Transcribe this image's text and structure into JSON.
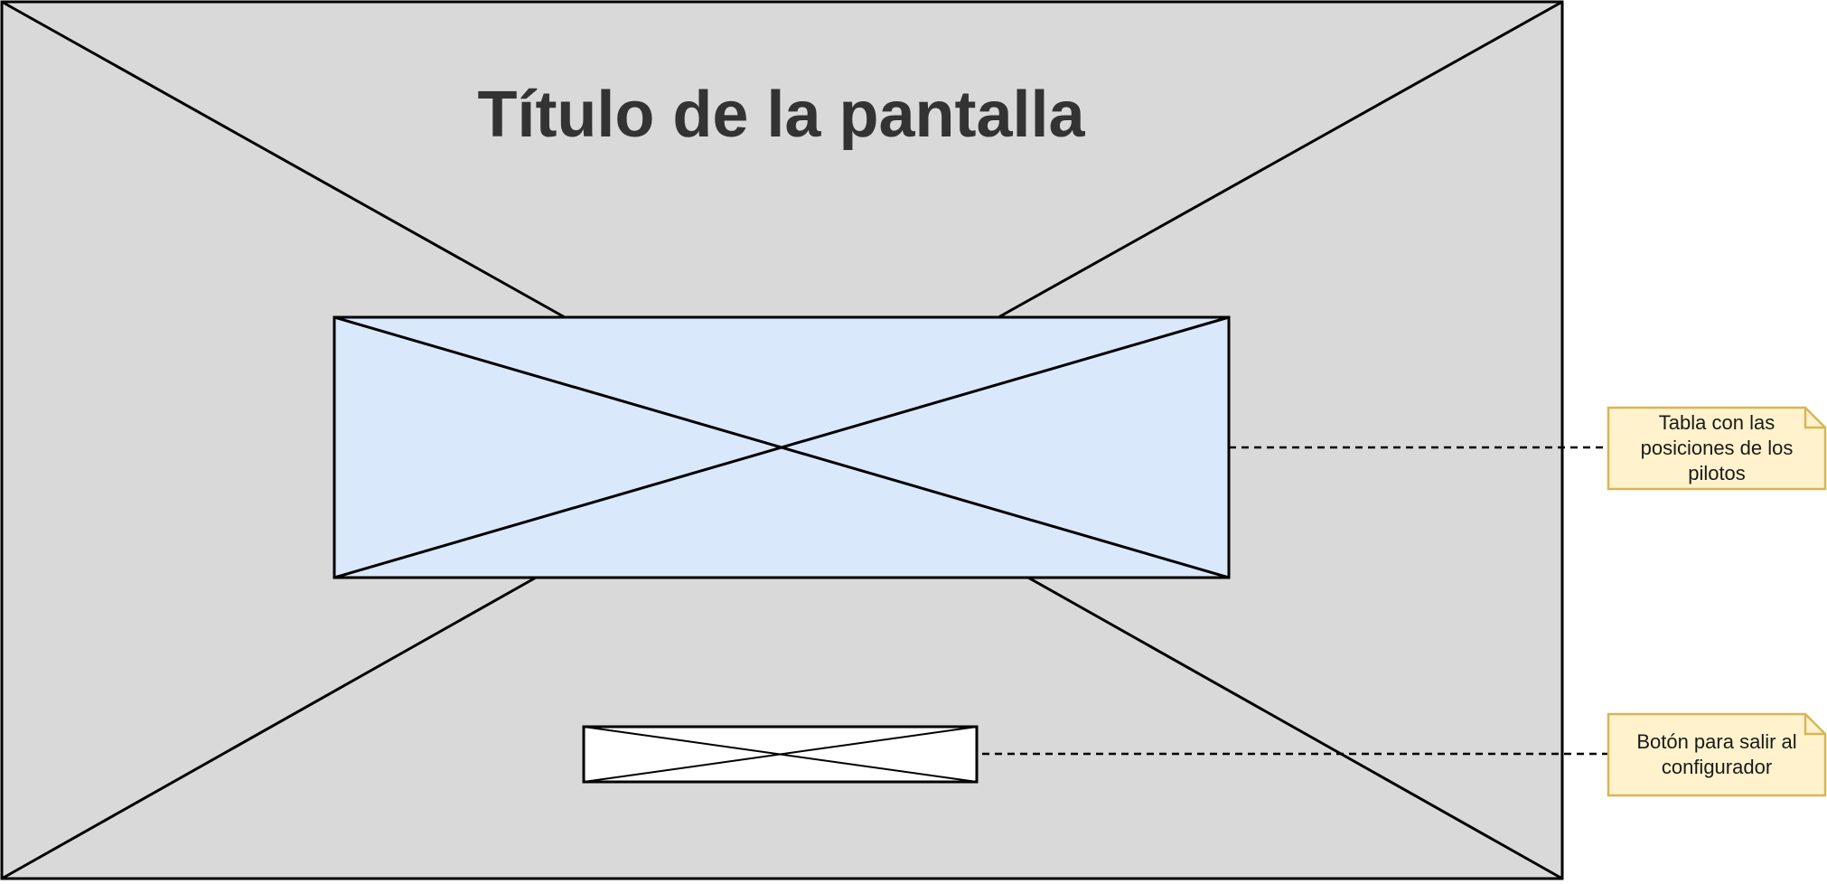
{
  "screen": {
    "title": "Título de la pantalla",
    "background_color": "#d9d9d9"
  },
  "table_placeholder": {
    "fill_color": "#dae8fc"
  },
  "button_placeholder": {
    "fill_color": "#ffffff"
  },
  "annotations": {
    "table_note": "Tabla con las posiciones de los pilotos",
    "button_note": "Botón para salir al configurador",
    "note_fill_color": "#fff2cc",
    "note_border_color": "#d6b656"
  }
}
